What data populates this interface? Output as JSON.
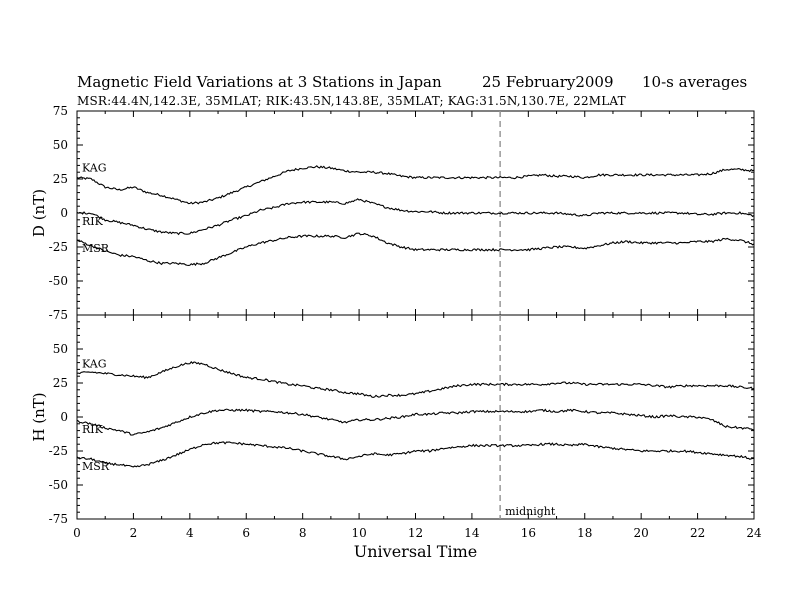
{
  "title": {
    "main": "Magnetic Field Variations at 3 Stations in Japan",
    "date": "25 February2009",
    "averaging": "10-s averages"
  },
  "subtitle": "MSR:44.4N,142.3E, 35MLAT;  RIK:43.5N,143.8E, 35MLAT;  KAG:31.5N,130.7E, 22MLAT",
  "colors": {
    "trace": "#000000",
    "frame": "#000000",
    "midnight_line": "#999999"
  },
  "chart_data": [
    {
      "type": "line",
      "panel": "top",
      "ylabel": "D (nT)",
      "xlabel": "",
      "xlim": [
        0,
        24
      ],
      "ylim": [
        -75,
        75
      ],
      "yticks": [
        75,
        50,
        25,
        0,
        -25,
        -50,
        -75
      ],
      "xticks": [],
      "grid": false,
      "series_labels_inline": [
        "KAG",
        "RIK",
        "MSR"
      ],
      "series": [
        {
          "name": "KAG",
          "x": [
            0,
            0.5,
            1,
            1.5,
            2,
            2.5,
            3,
            3.5,
            4,
            4.5,
            5,
            5.5,
            6,
            6.5,
            7,
            7.5,
            8,
            8.5,
            9,
            9.5,
            10,
            10.5,
            11,
            11.5,
            12,
            12.5,
            13,
            13.5,
            14,
            14.5,
            15,
            15.5,
            16,
            16.5,
            17,
            17.5,
            18,
            18.5,
            19,
            19.5,
            20,
            20.5,
            21,
            21.5,
            22,
            22.5,
            23,
            23.5,
            24
          ],
          "y": [
            26,
            25,
            19,
            17,
            19,
            15,
            13,
            10,
            7,
            8,
            11,
            15,
            19,
            23,
            27,
            31,
            33,
            34,
            33,
            31,
            30,
            30,
            29,
            27,
            26,
            26,
            26,
            26,
            26,
            26,
            26,
            26,
            27,
            28,
            27,
            27,
            26,
            28,
            28,
            28,
            28,
            28,
            28,
            28,
            28,
            29,
            32,
            32,
            31
          ]
        },
        {
          "name": "RIK",
          "x": [
            0,
            0.5,
            1,
            1.5,
            2,
            2.5,
            3,
            3.5,
            4,
            4.5,
            5,
            5.5,
            6,
            6.5,
            7,
            7.5,
            8,
            8.5,
            9,
            9.5,
            10,
            10.5,
            11,
            11.5,
            12,
            12.5,
            13,
            13.5,
            14,
            14.5,
            15,
            15.5,
            16,
            16.5,
            17,
            17.5,
            18,
            18.5,
            19,
            19.5,
            20,
            20.5,
            21,
            21.5,
            22,
            22.5,
            23,
            23.5,
            24
          ],
          "y": [
            0,
            0,
            -5,
            -7,
            -9,
            -12,
            -14,
            -15,
            -15,
            -12,
            -9,
            -5,
            -2,
            2,
            4,
            7,
            8,
            8,
            8,
            7,
            10,
            7,
            4,
            2,
            1,
            1,
            0,
            0,
            0,
            0,
            0,
            0,
            0,
            0,
            0,
            -1,
            -2,
            0,
            0,
            0,
            0,
            0,
            0,
            0,
            -1,
            -1,
            0,
            0,
            -2
          ]
        },
        {
          "name": "MSR",
          "x": [
            0,
            0.5,
            1,
            1.5,
            2,
            2.5,
            3,
            3.5,
            4,
            4.5,
            5,
            5.5,
            6,
            6.5,
            7,
            7.5,
            8,
            8.5,
            9,
            9.5,
            10,
            10.5,
            11,
            11.5,
            12,
            12.5,
            13,
            13.5,
            14,
            14.5,
            15,
            15.5,
            16,
            16.5,
            17,
            17.5,
            18,
            18.5,
            19,
            19.5,
            20,
            20.5,
            21,
            21.5,
            22,
            22.5,
            23,
            23.5,
            24
          ],
          "y": [
            -20,
            -24,
            -28,
            -31,
            -32,
            -35,
            -37,
            -37,
            -38,
            -37,
            -33,
            -29,
            -25,
            -22,
            -20,
            -18,
            -17,
            -17,
            -17,
            -18,
            -15,
            -17,
            -22,
            -25,
            -27,
            -27,
            -27,
            -27,
            -27,
            -27,
            -27,
            -27,
            -27,
            -26,
            -25,
            -25,
            -26,
            -24,
            -22,
            -21,
            -22,
            -22,
            -22,
            -22,
            -21,
            -21,
            -19,
            -20,
            -23
          ]
        }
      ]
    },
    {
      "type": "line",
      "panel": "bottom",
      "ylabel": "H (nT)",
      "xlabel": "Universal Time",
      "xlim": [
        0,
        24
      ],
      "ylim": [
        -75,
        75
      ],
      "yticks": [
        50,
        25,
        0,
        -25,
        -50,
        -75
      ],
      "xticks": [
        0,
        2,
        4,
        6,
        8,
        10,
        12,
        14,
        16,
        18,
        20,
        22,
        24
      ],
      "grid": false,
      "series_labels_inline": [
        "KAG",
        "RIK",
        "MSR"
      ],
      "annotation": {
        "text": "midnight",
        "x": 15
      },
      "series": [
        {
          "name": "KAG",
          "x": [
            0,
            0.5,
            1,
            1.5,
            2,
            2.5,
            3,
            3.5,
            4,
            4.5,
            5,
            5.5,
            6,
            6.5,
            7,
            7.5,
            8,
            8.5,
            9,
            9.5,
            10,
            10.5,
            11,
            11.5,
            12,
            12.5,
            13,
            13.5,
            14,
            14.5,
            15,
            15.5,
            16,
            16.5,
            17,
            17.5,
            18,
            18.5,
            19,
            19.5,
            20,
            20.5,
            21,
            21.5,
            22,
            22.5,
            23,
            23.5,
            24
          ],
          "y": [
            32,
            33,
            32,
            31,
            30,
            29,
            33,
            37,
            40,
            39,
            35,
            32,
            29,
            28,
            26,
            24,
            23,
            21,
            20,
            18,
            17,
            15,
            16,
            16,
            17,
            19,
            21,
            23,
            24,
            24,
            24,
            24,
            24,
            24,
            25,
            25,
            24,
            24,
            24,
            24,
            24,
            23,
            22,
            23,
            23,
            23,
            23,
            22,
            21
          ]
        },
        {
          "name": "RIK",
          "x": [
            0,
            0.5,
            1,
            1.5,
            2,
            2.5,
            3,
            3.5,
            4,
            4.5,
            5,
            5.5,
            6,
            6.5,
            7,
            7.5,
            8,
            8.5,
            9,
            9.5,
            10,
            10.5,
            11,
            11.5,
            12,
            12.5,
            13,
            13.5,
            14,
            14.5,
            15,
            15.5,
            16,
            16.5,
            17,
            17.5,
            18,
            18.5,
            19,
            19.5,
            20,
            20.5,
            21,
            21.5,
            22,
            22.5,
            23,
            23.5,
            24
          ],
          "y": [
            -3,
            -5,
            -8,
            -10,
            -13,
            -11,
            -8,
            -4,
            0,
            3,
            5,
            5,
            5,
            4,
            4,
            3,
            2,
            0,
            -2,
            -4,
            -2,
            -2,
            -1,
            0,
            2,
            2,
            3,
            3,
            4,
            4,
            4,
            4,
            4,
            5,
            4,
            5,
            4,
            3,
            3,
            2,
            1,
            0,
            1,
            0,
            0,
            -2,
            -7,
            -8,
            -9
          ]
        },
        {
          "name": "MSR",
          "x": [
            0,
            0.5,
            1,
            1.5,
            2,
            2.5,
            3,
            3.5,
            4,
            4.5,
            5,
            5.5,
            6,
            6.5,
            7,
            7.5,
            8,
            8.5,
            9,
            9.5,
            10,
            10.5,
            11,
            11.5,
            12,
            12.5,
            13,
            13.5,
            14,
            14.5,
            15,
            15.5,
            16,
            16.5,
            17,
            17.5,
            18,
            18.5,
            19,
            19.5,
            20,
            20.5,
            21,
            21.5,
            22,
            22.5,
            23,
            23.5,
            24
          ],
          "y": [
            -30,
            -31,
            -34,
            -35,
            -37,
            -35,
            -32,
            -28,
            -24,
            -20,
            -19,
            -19,
            -20,
            -21,
            -22,
            -23,
            -25,
            -27,
            -29,
            -31,
            -29,
            -27,
            -28,
            -27,
            -25,
            -25,
            -23,
            -22,
            -21,
            -21,
            -21,
            -21,
            -21,
            -20,
            -20,
            -21,
            -20,
            -22,
            -23,
            -24,
            -25,
            -25,
            -25,
            -25,
            -26,
            -27,
            -28,
            -29,
            -31
          ]
        }
      ]
    }
  ]
}
